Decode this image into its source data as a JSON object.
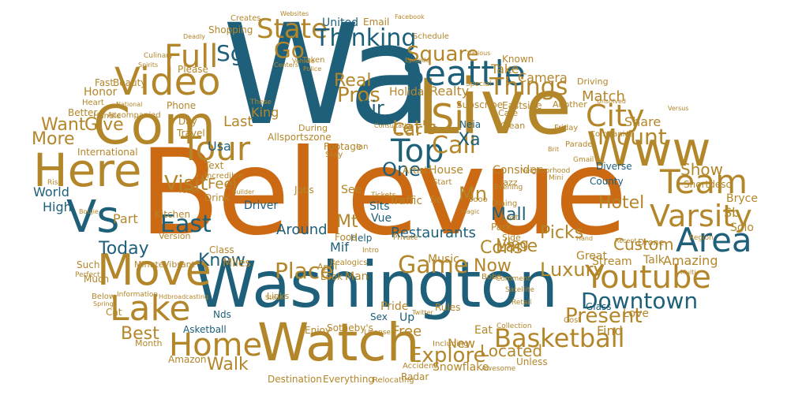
{
  "palette": {
    "orange": "#cc6a14",
    "blue": "#1e5f7a",
    "gold": "#b3862a",
    "background": "#ffffff"
  },
  "words": {
    "bellevue": "Bellevue",
    "wa": "Wa",
    "washington": "Washington",
    "live": "Live",
    "watch": "Watch",
    "com": "Com",
    "www": "Www",
    "video": "Video",
    "here": "Here",
    "vs": "Vs",
    "move": "Move",
    "youtube": "Youtube",
    "seattle": "Seattle",
    "tour": "Tour",
    "area": "Area",
    "team": "Team",
    "varsity": "Varsity",
    "lake": "Lake",
    "home": "Home",
    "basketball": "Basketball",
    "full": "Full",
    "state": "State",
    "thinking": "Thinking",
    "top": "Top",
    "si": "Si",
    "sg": "Sg",
    "go": "Go",
    "city": "City",
    "game": "Game",
    "place": "Place",
    "downtown": "Downtown",
    "explore": "Explore",
    "mount": "Mount",
    "present": "Present",
    "things": "Things",
    "call": "Call",
    "east": "East",
    "visit": "Visit",
    "luxury": "Luxury",
    "square": "Square",
    "lets": "Let's",
    "one": "One",
    "mn": "Mn",
    "pros": "Pros",
    "sir": "Sir",
    "real": "Real",
    "car": "Car",
    "today": "Today",
    "give": "Give",
    "more": "More",
    "want": "Want",
    "best": "Best",
    "walk": "Walk",
    "mall": "Mall",
    "picks": "Picks",
    "cons": "Cons",
    "hotel": "Hotel",
    "located": "Located",
    "know": "Know",
    "now": "Now",
    "mt": "Mt",
    "lane": "Lane",
    "custom": "Custom",
    "show": "Show",
    "world": "World",
    "high": "High",
    "part": "Part",
    "last": "Last",
    "feel": "Feel",
    "usa": "Usa",
    "king": "King",
    "xa": "Xa",
    "vlog": "Vlog",
    "around": "Around",
    "restaurants": "Restaurants",
    "free": "Free",
    "new": "New",
    "find": "Find",
    "share": "Share",
    "match": "Match",
    "camera": "Camera",
    "take": "Take",
    "known": "Known",
    "realty": "Realty",
    "holiday": "Holiday",
    "consider": "Consider",
    "house": "House",
    "united": "United",
    "email": "Email",
    "shopping": "Shopping",
    "creates": "Creates",
    "beauty": "Beauty",
    "please": "Please",
    "honor": "Honor",
    "fast": "Fast",
    "better": "Better",
    "heart": "Heart",
    "handle": "Handle",
    "phone": "Phone",
    "day": "Day",
    "travel": "Travel",
    "international": "International",
    "text": "Text",
    "incredible": "Incredible",
    "drink": "Drink",
    "kitchen": "Kitchen",
    "version": "Version",
    "minute": "Minute",
    "vibrant": "Vibrant",
    "class": "Class",
    "miles": "Miles",
    "such": "Such",
    "much": "Much",
    "below": "Below",
    "asketball": "Asketball",
    "amazon": "Amazon",
    "month": "Month",
    "cat": "Cat",
    "music": "Music",
    "sits": "Sits",
    "traffic": "Traffic",
    "driver": "Driver",
    "jobs": "Jobs",
    "see": "See",
    "vue": "Vue",
    "help": "Help",
    "food": "Food",
    "mif": "Mif",
    "pride": "Pride",
    "up": "Up",
    "rules": "Rules",
    "eat": "Eat",
    "cost": "Cost",
    "glass": "Glass",
    "love": "Love",
    "talk": "Talk",
    "amazing": "Amazing",
    "great": "Great",
    "stream": "Stream",
    "drone": "Drone",
    "solo": "Solo",
    "sb": "Sb",
    "bryce": "Bryce",
    "diverse": "Diverse",
    "county": "County",
    "companies": "Companies",
    "friday": "Friday",
    "clean": "Clean",
    "cafe": "Cafe",
    "eastside": "Eastside",
    "subscribe": "Subscribe",
    "another": "Another",
    "driving": "Driving",
    "neia": "Neia",
    "dining": "Dining",
    "evening": "Evening",
    "park": "Park",
    "lost": "Lost",
    "side": "Side",
    "snowflake": "Snowflake",
    "including": "Including",
    "accident": "Accident",
    "awesome": "Awesome",
    "unless": "Unless",
    "radar": "Radar",
    "relocating": "Relocating",
    "everything": "Everything",
    "destination": "Destination",
    "enjoy": "Enjoy",
    "sothebys": "Sotheby's",
    "man": "Man",
    "look": "Look",
    "april": "April",
    "links": "Links",
    "steak": "Steak",
    "nds": "Nds",
    "footage": "Footage",
    "stay": "Stay",
    "ian": "Ian",
    "artist": "Artist",
    "during": "During",
    "allsportszone": "Allsportszone",
    "schedule": "Schedule",
    "episode": "Episode",
    "taken": "Taken",
    "facebook": "Facebook",
    "websites": "Websites",
    "boba": "Boba",
    "jazz": "Jazz",
    "mini": "Mini",
    "unsolved": "Unsolved",
    "versus": "Versus",
    "parade": "Parade",
    "neighborhood": "Neighborhood",
    "start": "Start",
    "brit": "Brit",
    "gmail": "Gmail",
    "shortdesc": "Shortdesc",
    "retail": "Retail",
    "collection": "Collection",
    "builder": "Builder",
    "foodie": "Foodie",
    "rise": "Rise",
    "boujie": "Boujie",
    "these": "These",
    "intro": "Intro",
    "special": "Special",
    "hand": "Hand",
    "multi": "Multi",
    "recent": "Recent",
    "region": "Region",
    "severe": "Severe",
    "tickets": "Tickets",
    "culinary": "Culinary",
    "deadly": "Deadly",
    "spirits": "Spirits",
    "national": "National",
    "accompanied": "Accompanied",
    "private": "Private",
    "satellite": "Satellite",
    "comment": "Comment",
    "information": "Information",
    "perfect": "Perfect",
    "spring": "Spring",
    "severn": "Sex",
    "se": "Se",
    "magic": "Magic",
    "ewa": "Sooo",
    "various": "Various",
    "centers": "Centers",
    "police": "Police",
    "vehicle": "Vehicle",
    "consultation": "Consultation",
    "license": "License",
    "twitter": "Twitter",
    "hdbroadcasting": "Hdbroadcasting",
    "realogics": "Realogics"
  }
}
